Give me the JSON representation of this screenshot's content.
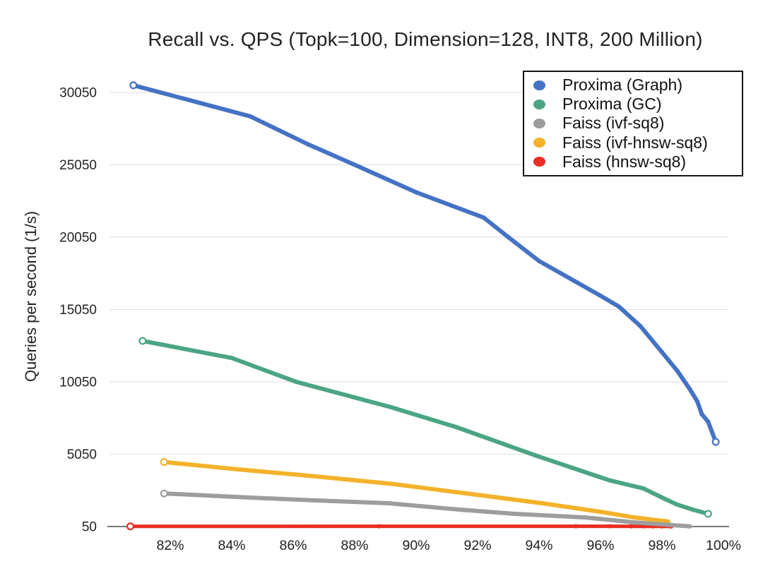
{
  "chart_data": {
    "type": "line",
    "title": "Recall vs. QPS (Topk=100, Dimension=128, INT8, 200 Million)",
    "xlabel": "",
    "ylabel": "Queries per second (1/s)",
    "legend_position": "top-right",
    "grid": "horizontal",
    "xlim": [
      80,
      100.3
    ],
    "ylim": [
      50,
      31550
    ],
    "x_tick_values": [
      82,
      84,
      86,
      88,
      90,
      92,
      94,
      96,
      98,
      100
    ],
    "x_tick_labels": [
      "82%",
      "84%",
      "86%",
      "88%",
      "90%",
      "92%",
      "94%",
      "96%",
      "98%",
      "100%"
    ],
    "y_tick_values": [
      50,
      5050,
      10050,
      15050,
      20050,
      25050,
      30050
    ],
    "y_tick_labels": [
      "50",
      "5050",
      "10050",
      "15050",
      "20050",
      "25050",
      "30050"
    ],
    "colors": {
      "grid": "#E3E3E3",
      "baseline": "#4A4A4A",
      "text": "#222222",
      "background": "#FFFFFF"
    },
    "series": [
      {
        "name": "Proxima (Graph)",
        "color": "#4472C4",
        "line_width": 6,
        "open_start": true,
        "open_end": true,
        "points": [
          [
            80.8,
            30550
          ],
          [
            84.6,
            28400
          ],
          [
            86.5,
            26450
          ],
          [
            88.0,
            25050
          ],
          [
            90.0,
            23150
          ],
          [
            92.2,
            21400
          ],
          [
            93.0,
            20050
          ],
          [
            94.0,
            18400
          ],
          [
            95.0,
            17200
          ],
          [
            96.0,
            16000
          ],
          [
            96.6,
            15250
          ],
          [
            97.3,
            13900
          ],
          [
            98.0,
            12100
          ],
          [
            98.5,
            10800
          ],
          [
            98.9,
            9560
          ],
          [
            99.15,
            8700
          ],
          [
            99.3,
            7800
          ],
          [
            99.5,
            7300
          ],
          [
            99.75,
            5900
          ]
        ]
      },
      {
        "name": "Proxima (GC)",
        "color": "#4BA583",
        "line_width": 6,
        "open_start": true,
        "open_end": true,
        "points": [
          [
            81.1,
            12880
          ],
          [
            84.0,
            11700
          ],
          [
            86.1,
            10050
          ],
          [
            89.2,
            8290
          ],
          [
            91.3,
            6930
          ],
          [
            93.9,
            4950
          ],
          [
            95.4,
            3880
          ],
          [
            96.3,
            3240
          ],
          [
            97.4,
            2680
          ],
          [
            98.1,
            1950
          ],
          [
            98.5,
            1560
          ],
          [
            99.0,
            1220
          ],
          [
            99.5,
            930
          ]
        ]
      },
      {
        "name": "Faiss (ivf-sq8)",
        "color": "#9D9D9D",
        "line_width": 6,
        "open_start": true,
        "open_end": false,
        "points": [
          [
            81.8,
            2340
          ],
          [
            84.6,
            2050
          ],
          [
            86.8,
            1850
          ],
          [
            89.1,
            1660
          ],
          [
            91.4,
            1220
          ],
          [
            93.2,
            930
          ],
          [
            95.5,
            680
          ],
          [
            97.1,
            340
          ],
          [
            98.0,
            200
          ],
          [
            98.9,
            60
          ]
        ]
      },
      {
        "name": "Faiss (ivf-hnsw-sq8)",
        "color": "#F3B229",
        "line_width": 6,
        "open_start": true,
        "open_end": false,
        "points": [
          [
            81.8,
            4510
          ],
          [
            84.2,
            4000
          ],
          [
            86.5,
            3560
          ],
          [
            89.2,
            3000
          ],
          [
            91.6,
            2350
          ],
          [
            94.1,
            1660
          ],
          [
            96.0,
            1070
          ],
          [
            97.1,
            680
          ],
          [
            98.2,
            400
          ]
        ]
      },
      {
        "name": "Faiss (hnsw-sq8)",
        "color": "#EB2D23",
        "line_width": 5,
        "open_start": true,
        "open_end": false,
        "points": [
          [
            80.7,
            60
          ],
          [
            88.8,
            70
          ],
          [
            95.2,
            70
          ],
          [
            96.3,
            70
          ],
          [
            97.0,
            65
          ],
          [
            97.4,
            65
          ],
          [
            97.7,
            60
          ],
          [
            98.0,
            60
          ],
          [
            98.3,
            55
          ]
        ]
      }
    ]
  }
}
